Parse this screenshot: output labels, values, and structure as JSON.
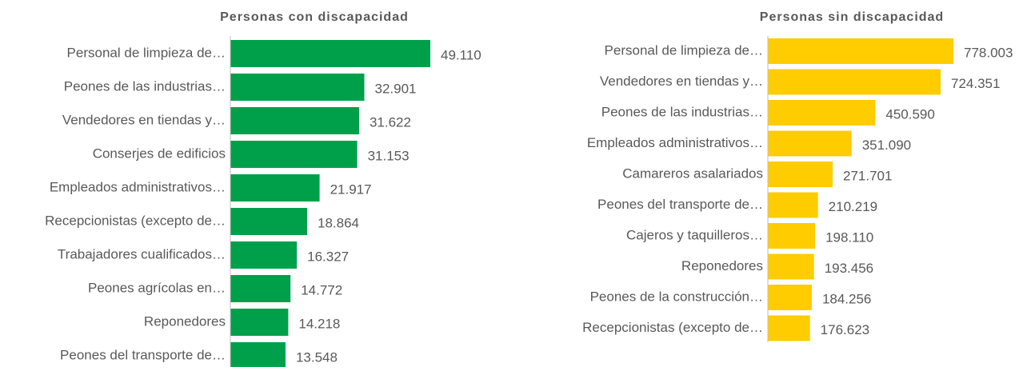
{
  "chart_data": [
    {
      "type": "barh",
      "title": "Personas con discapacidad",
      "color": "#00a04a",
      "categories": [
        "Personal de limpieza de…",
        "Peones de las industrias…",
        "Vendedores en tiendas y…",
        "Conserjes de edificios",
        "Empleados administrativos…",
        "Recepcionistas (excepto de…",
        "Trabajadores cualificados…",
        "Peones agrícolas en…",
        "Reponedores",
        "Peones del transporte de…"
      ],
      "values": [
        49110,
        32901,
        31622,
        31153,
        21917,
        18864,
        16327,
        14772,
        14218,
        13548
      ],
      "value_labels": [
        "49.110",
        "32.901",
        "31.622",
        "31.153",
        "21.917",
        "18.864",
        "16.327",
        "14.772",
        "14.218",
        "13.548"
      ]
    },
    {
      "type": "barh",
      "title": "Personas sin discapacidad",
      "color": "#ffcc00",
      "categories": [
        "Personal de limpieza de…",
        "Vendedores en tiendas y…",
        "Peones de las industrias…",
        "Empleados administrativos…",
        "Camareros asalariados",
        "Peones del transporte de…",
        "Cajeros y taquilleros…",
        "Reponedores",
        "Peones de la construcción…",
        "Recepcionistas (excepto de…"
      ],
      "values": [
        778003,
        724351,
        450590,
        351090,
        271701,
        210219,
        198110,
        193456,
        184256,
        176623
      ],
      "value_labels": [
        "778.003",
        "724.351",
        "450.590",
        "351.090",
        "271.701",
        "210.219",
        "198.110",
        "193.456",
        "184.256",
        "176.623"
      ]
    }
  ]
}
